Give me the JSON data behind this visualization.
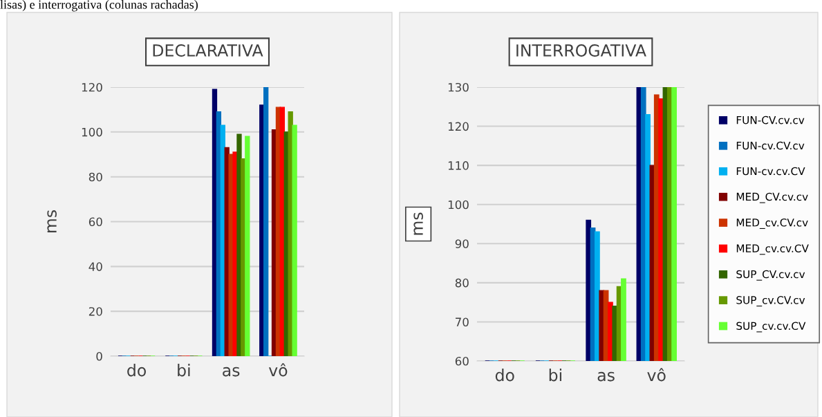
{
  "chart_data": [
    {
      "type": "bar",
      "title": "DECLARATIVA",
      "ylabel": "ms",
      "categories": [
        "do",
        "bi",
        "as",
        "vô"
      ],
      "ylim": [
        0,
        120
      ],
      "yticks": [
        0,
        20,
        40,
        60,
        80,
        100,
        120
      ],
      "grid": "y",
      "legend": false,
      "annotations": [
        "lisas) e interrogativa (colunas rachadas)"
      ],
      "series": [
        {
          "color": "#000066",
          "values": [
            0,
            0,
            119,
            112
          ]
        },
        {
          "color": "#0070c0",
          "values": [
            0,
            0,
            109,
            120
          ]
        },
        {
          "color": "#00b0f0",
          "values": [
            0,
            0,
            103,
            0
          ]
        },
        {
          "color": "#800000",
          "values": [
            0,
            0,
            93,
            101
          ]
        },
        {
          "color": "#cc3300",
          "values": [
            0,
            0,
            90,
            111
          ]
        },
        {
          "color": "#ff0000",
          "values": [
            0,
            0,
            91,
            111
          ]
        },
        {
          "color": "#336600",
          "values": [
            0,
            0,
            99,
            100
          ]
        },
        {
          "color": "#669900",
          "values": [
            0,
            0,
            88,
            109
          ]
        },
        {
          "color": "#66ff33",
          "values": [
            0,
            0,
            98,
            103
          ]
        }
      ]
    },
    {
      "type": "bar",
      "title": "INTERROGATIVA",
      "ylabel": "ms",
      "categories": [
        "do",
        "bi",
        "as",
        "vô"
      ],
      "ylim": [
        60,
        130
      ],
      "yticks": [
        60,
        70,
        80,
        90,
        100,
        110,
        120,
        130
      ],
      "grid": "y",
      "legend": "right",
      "series": [
        {
          "name": "FUN-CV.cv.cv",
          "color": "#000066",
          "values": [
            60,
            60,
            96,
            130
          ]
        },
        {
          "name": "FUN-cv.CV.cv",
          "color": "#0070c0",
          "values": [
            60,
            60,
            94,
            130
          ]
        },
        {
          "name": "FUN-cv.cv.CV",
          "color": "#00b0f0",
          "values": [
            60,
            60,
            93,
            123
          ]
        },
        {
          "name": "MED_CV.cv.cv",
          "color": "#800000",
          "values": [
            60,
            60,
            78,
            110
          ]
        },
        {
          "name": "MED_cv.CV.cv",
          "color": "#cc3300",
          "values": [
            60,
            60,
            78,
            128
          ]
        },
        {
          "name": "MED_cv.cv.CV",
          "color": "#ff0000",
          "values": [
            60,
            60,
            75,
            127
          ]
        },
        {
          "name": "SUP_CV.cv.cv",
          "color": "#336600",
          "values": [
            60,
            60,
            74,
            130
          ]
        },
        {
          "name": "SUP_cv.CV.cv",
          "color": "#669900",
          "values": [
            60,
            60,
            79,
            130
          ]
        },
        {
          "name": "SUP_cv.cv.CV",
          "color": "#66ff33",
          "values": [
            60,
            60,
            81,
            130
          ]
        }
      ]
    }
  ]
}
